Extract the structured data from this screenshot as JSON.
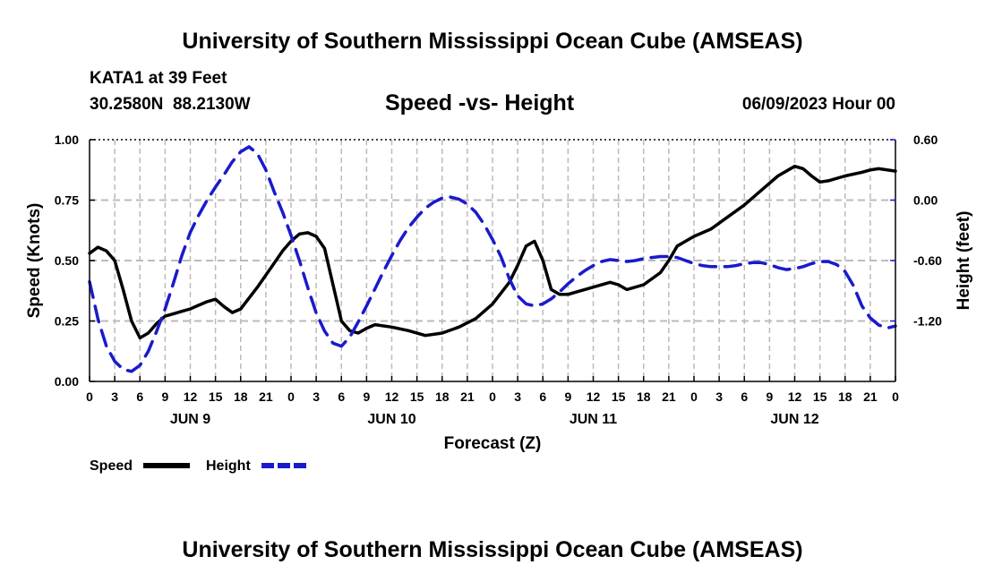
{
  "header": {
    "title": "University of Southern Mississippi Ocean Cube (AMSEAS)",
    "station": "KATA1 at 39 Feet",
    "coords": "30.2580N  88.2130W",
    "chart_title": "Speed -vs- Height",
    "date": "06/09/2023 Hour 00"
  },
  "footer": {
    "title": "University of Southern Mississippi Ocean Cube (AMSEAS)"
  },
  "colors": {
    "speed": "#000000",
    "height": "#1a1acc",
    "grid": "#bbbbbb"
  },
  "chart_data": {
    "type": "line",
    "title": "Speed -vs- Height",
    "xlabel": "Forecast (Z)",
    "ylabel": "Speed (Knots)",
    "y2label": "Height (feet)",
    "x_range": [
      0,
      96
    ],
    "ylim": [
      0,
      1.0
    ],
    "y2lim": [
      -1.8,
      0.6
    ],
    "x_tick_labels": [
      "0",
      "3",
      "6",
      "9",
      "12",
      "15",
      "18",
      "21",
      "0",
      "3",
      "6",
      "9",
      "12",
      "15",
      "18",
      "21",
      "0",
      "3",
      "6",
      "9",
      "12",
      "15",
      "18",
      "21",
      "0",
      "3",
      "6",
      "9",
      "12",
      "15",
      "18",
      "21",
      "0"
    ],
    "day_labels": [
      {
        "label": "JUN 9",
        "hour": 12
      },
      {
        "label": "JUN 10",
        "hour": 36
      },
      {
        "label": "JUN 11",
        "hour": 60
      },
      {
        "label": "JUN 12",
        "hour": 84
      }
    ],
    "y_ticks": [
      "0.00",
      "0.25",
      "0.50",
      "0.75",
      "1.00"
    ],
    "y2_ticks": [
      "-1.20",
      "-0.60",
      "0.00",
      "0.60"
    ],
    "legend": [
      "Speed",
      "Height"
    ],
    "series": [
      {
        "name": "Speed",
        "axis": "left",
        "style": "solid",
        "x": [
          0,
          1,
          2,
          3,
          4,
          5,
          6,
          7,
          8,
          9,
          10,
          11,
          12,
          13,
          14,
          15,
          16,
          17,
          18,
          19,
          20,
          21,
          22,
          23,
          24,
          25,
          26,
          27,
          28,
          29,
          30,
          31,
          32,
          33,
          34,
          36,
          38,
          40,
          42,
          44,
          46,
          48,
          50,
          51,
          52,
          53,
          54,
          55,
          56,
          57,
          58,
          60,
          62,
          63,
          64,
          66,
          68,
          69,
          70,
          72,
          74,
          76,
          78,
          80,
          82,
          84,
          85,
          86,
          87,
          88,
          90,
          92,
          93,
          94,
          96
        ],
        "values": [
          0.53,
          0.555,
          0.54,
          0.5,
          0.38,
          0.25,
          0.18,
          0.2,
          0.24,
          0.27,
          0.28,
          0.29,
          0.3,
          0.315,
          0.33,
          0.34,
          0.31,
          0.285,
          0.3,
          0.345,
          0.39,
          0.44,
          0.49,
          0.54,
          0.58,
          0.61,
          0.615,
          0.6,
          0.55,
          0.4,
          0.25,
          0.21,
          0.2,
          0.22,
          0.235,
          0.225,
          0.21,
          0.19,
          0.2,
          0.225,
          0.26,
          0.32,
          0.41,
          0.48,
          0.56,
          0.58,
          0.5,
          0.38,
          0.36,
          0.36,
          0.37,
          0.39,
          0.41,
          0.4,
          0.38,
          0.4,
          0.45,
          0.5,
          0.56,
          0.6,
          0.63,
          0.68,
          0.73,
          0.79,
          0.85,
          0.89,
          0.88,
          0.85,
          0.825,
          0.83,
          0.85,
          0.865,
          0.875,
          0.88,
          0.87
        ]
      },
      {
        "name": "Height",
        "axis": "right",
        "style": "dashed",
        "x": [
          0,
          1,
          2,
          3,
          4,
          5,
          6,
          7,
          8,
          9,
          10,
          11,
          12,
          13,
          14,
          15,
          16,
          17,
          18,
          19,
          20,
          21,
          22,
          23,
          24,
          25,
          26,
          27,
          28,
          29,
          30,
          31,
          32,
          33,
          34,
          35,
          36,
          37,
          38,
          39,
          40,
          41,
          42,
          43,
          44,
          45,
          46,
          47,
          48,
          49,
          50,
          51,
          52,
          53,
          54,
          55,
          56,
          57,
          58,
          59,
          60,
          61,
          62,
          63,
          64,
          65,
          66,
          67,
          68,
          69,
          70,
          71,
          72,
          73,
          74,
          75,
          76,
          77,
          78,
          79,
          80,
          81,
          82,
          83,
          84,
          85,
          86,
          87,
          88,
          89,
          90,
          91,
          92,
          93,
          94,
          95,
          96
        ],
        "values": [
          -0.81,
          -1.18,
          -1.45,
          -1.6,
          -1.68,
          -1.7,
          -1.64,
          -1.5,
          -1.3,
          -1.08,
          -0.82,
          -0.55,
          -0.32,
          -0.15,
          0.0,
          0.13,
          0.25,
          0.38,
          0.48,
          0.53,
          0.46,
          0.3,
          0.08,
          -0.12,
          -0.35,
          -0.6,
          -0.87,
          -1.12,
          -1.3,
          -1.42,
          -1.45,
          -1.36,
          -1.21,
          -1.05,
          -0.88,
          -0.71,
          -0.55,
          -0.4,
          -0.27,
          -0.17,
          -0.08,
          -0.02,
          0.02,
          0.03,
          0.01,
          -0.04,
          -0.12,
          -0.24,
          -0.39,
          -0.56,
          -0.78,
          -0.95,
          -1.03,
          -1.05,
          -1.03,
          -0.98,
          -0.91,
          -0.83,
          -0.76,
          -0.7,
          -0.65,
          -0.61,
          -0.59,
          -0.6,
          -0.61,
          -0.6,
          -0.58,
          -0.57,
          -0.56,
          -0.56,
          -0.57,
          -0.6,
          -0.63,
          -0.65,
          -0.66,
          -0.66,
          -0.66,
          -0.65,
          -0.63,
          -0.62,
          -0.62,
          -0.64,
          -0.67,
          -0.69,
          -0.68,
          -0.66,
          -0.63,
          -0.61,
          -0.61,
          -0.64,
          -0.71,
          -0.85,
          -1.05,
          -1.17,
          -1.24,
          -1.27,
          -1.25
        ]
      }
    ]
  }
}
